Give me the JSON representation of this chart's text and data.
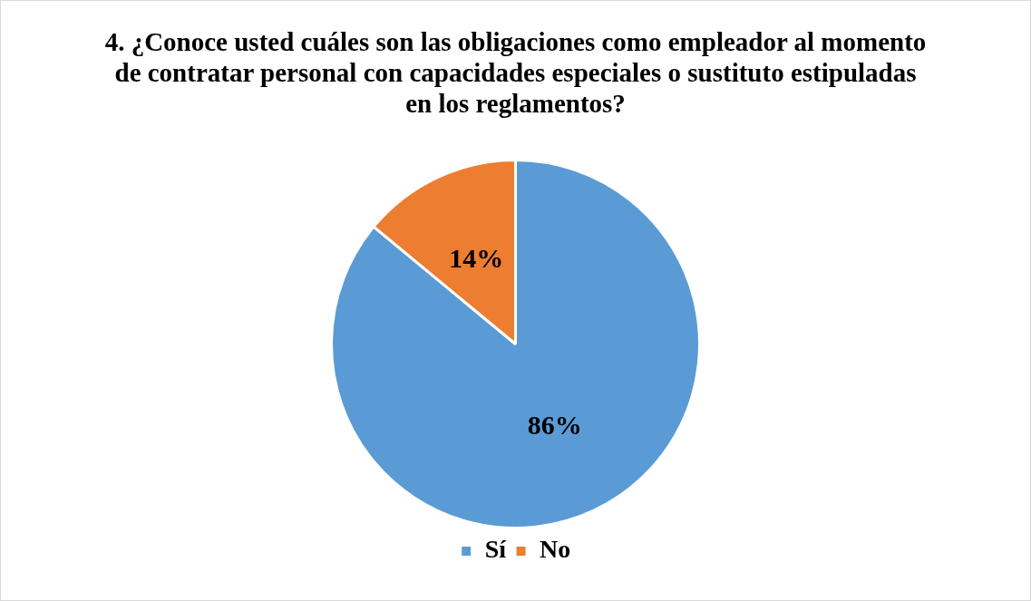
{
  "chart_data": {
    "type": "pie",
    "title": "4. ¿Conoce usted cuáles son las obligaciones como empleador al momento de contratar personal con capacidades especiales o sustituto estipuladas en los reglamentos?",
    "categories": [
      "Sí",
      "No"
    ],
    "values": [
      86,
      14
    ],
    "colors": [
      "#5b9bd5",
      "#ed7d31"
    ],
    "value_labels": [
      "86%",
      "14%"
    ],
    "legend": "bottom"
  }
}
